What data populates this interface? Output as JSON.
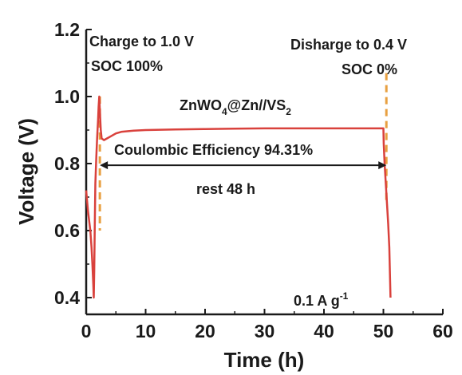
{
  "chart_data": {
    "type": "line",
    "xlabel": "Time (h)",
    "ylabel": "Voltage (V)",
    "xlim": [
      0,
      60
    ],
    "ylim": [
      0.35,
      1.2
    ],
    "x_ticks": [
      0,
      10,
      20,
      30,
      40,
      50,
      60
    ],
    "y_ticks": [
      0.4,
      0.6,
      0.8,
      1.0,
      1.2
    ],
    "y_tick_labels": [
      "0.4",
      "0.6",
      "0.8",
      "1.0",
      "1.2"
    ],
    "line_color": "#d9413c",
    "marker_color": "#e8a040",
    "series": [
      {
        "x": [
          0,
          0.15,
          0.3,
          0.5,
          0.7,
          0.9,
          1.05,
          1.2,
          1.28,
          1.35,
          1.45,
          1.55,
          1.7,
          1.85,
          2.0,
          2.1,
          2.2,
          2.3,
          2.45,
          2.6,
          3.0,
          3.5,
          4.0,
          5,
          6,
          8,
          10,
          15,
          20,
          25,
          30,
          35,
          40,
          45,
          50,
          50.05,
          50.2,
          50.4,
          50.6,
          50.8,
          51.0,
          51.1,
          51.2
        ],
        "y": [
          0.72,
          0.69,
          0.66,
          0.63,
          0.6,
          0.55,
          0.5,
          0.44,
          0.4,
          0.48,
          0.62,
          0.74,
          0.82,
          0.88,
          0.93,
          0.97,
          1.0,
          0.96,
          0.9,
          0.875,
          0.87,
          0.875,
          0.88,
          0.89,
          0.895,
          0.898,
          0.9,
          0.902,
          0.903,
          0.904,
          0.905,
          0.905,
          0.905,
          0.905,
          0.905,
          0.86,
          0.8,
          0.74,
          0.68,
          0.62,
          0.55,
          0.47,
          0.4
        ]
      }
    ],
    "markers": [
      {
        "x": 2.3,
        "y_from": 1.0,
        "y_to": 0.6
      },
      {
        "x": 50.5,
        "y_from": 1.07,
        "y_to": 0.68
      }
    ],
    "arrow": {
      "x_from": 2.3,
      "x_to": 50.5,
      "y": 0.795
    },
    "annotations": {
      "charge_line1": "Charge to 1.0 V",
      "charge_line2": "SOC 100%",
      "discharge_line1": "Disharge to 0.4 V",
      "discharge_line2": "SOC 0%",
      "cell_main": "ZnWO",
      "cell_sub": "4",
      "cell_rest": "@Zn//VS",
      "cell_sub2": "2",
      "coulombic": "Coulombic Efficiency  94.31%",
      "rest": "rest 48 h",
      "current_main": "0.1 A g",
      "current_sup": "-1"
    }
  }
}
